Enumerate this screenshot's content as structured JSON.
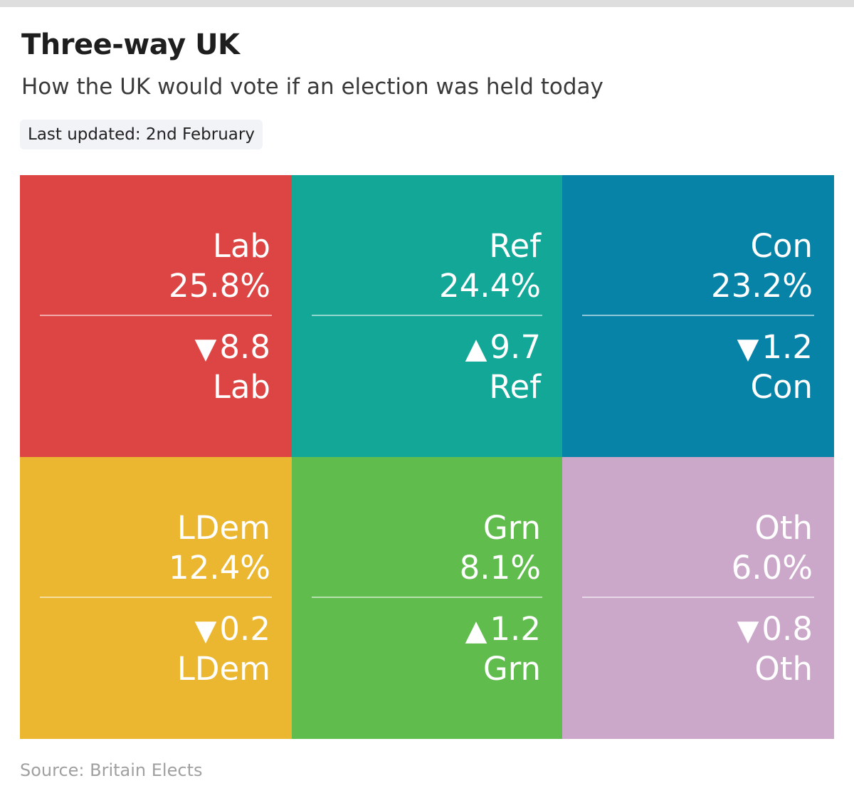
{
  "header": {
    "title": "Three-way UK",
    "subtitle": "How the UK would vote if an election was held today",
    "updated": "Last updated: 2nd February"
  },
  "footer": {
    "source": "Source: Britain Elects"
  },
  "chart_data": {
    "type": "table",
    "title": "Three-way UK",
    "subtitle": "How the UK would vote if an election was held today",
    "parties": [
      {
        "name": "Lab",
        "share": "25.8%",
        "value": 25.8,
        "direction": "down",
        "arrow": "▼",
        "change": "8.8",
        "change_value": -8.8,
        "color": "#dd4444"
      },
      {
        "name": "Ref",
        "share": "24.4%",
        "value": 24.4,
        "direction": "up",
        "arrow": "▲",
        "change": "9.7",
        "change_value": 9.7,
        "color": "#12a796"
      },
      {
        "name": "Con",
        "share": "23.2%",
        "value": 23.2,
        "direction": "down",
        "arrow": "▼",
        "change": "1.2",
        "change_value": -1.2,
        "color": "#0783a8"
      },
      {
        "name": "LDem",
        "share": "12.4%",
        "value": 12.4,
        "direction": "down",
        "arrow": "▼",
        "change": "0.2",
        "change_value": -0.2,
        "color": "#ebb730"
      },
      {
        "name": "Grn",
        "share": "8.1%",
        "value": 8.1,
        "direction": "up",
        "arrow": "▲",
        "change": "1.2",
        "change_value": 1.2,
        "color": "#60bd4d"
      },
      {
        "name": "Oth",
        "share": "6.0%",
        "value": 6.0,
        "direction": "down",
        "arrow": "▼",
        "change": "0.8",
        "change_value": -0.8,
        "color": "#cba8c9"
      }
    ]
  }
}
